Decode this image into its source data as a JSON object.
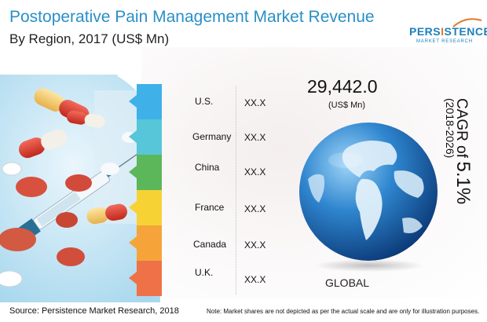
{
  "header": {
    "title": "Postoperative Pain Management Market Revenue",
    "subtitle": "By Region, 2017 (US$ Mn)"
  },
  "logo": {
    "word_a": "PERS",
    "word_b": "I",
    "word_c": "STENCE",
    "tagline": "MARKET RESEARCH"
  },
  "regions": [
    {
      "label": "U.S.",
      "value": "XX.X",
      "color": "#3fb0e8"
    },
    {
      "label": "Germany",
      "value": "XX.X",
      "color": "#56c6d8"
    },
    {
      "label": "China",
      "value": "XX.X",
      "color": "#5cb65a"
    },
    {
      "label": "France",
      "value": "XX.X",
      "color": "#f7d235"
    },
    {
      "label": "Canada",
      "value": "XX.X",
      "color": "#f6a43a"
    },
    {
      "label": "U.K.",
      "value": "XX.X",
      "color": "#ef7148"
    }
  ],
  "global": {
    "total": "29,442.0",
    "unit": "(US$ Mn)",
    "label": "GLOBAL"
  },
  "cagr": {
    "prefix": "CAGR of",
    "value": "5.1%",
    "period": "(2018-2026)"
  },
  "footer": {
    "source": "Source: Persistence Market Research, 2018",
    "note": "Note: Market shares are not depicted as per the actual scale and are only for illustration purposes."
  },
  "icons": {
    "globe": "globe-icon",
    "pills_photo": "pills-syringe-photo"
  }
}
